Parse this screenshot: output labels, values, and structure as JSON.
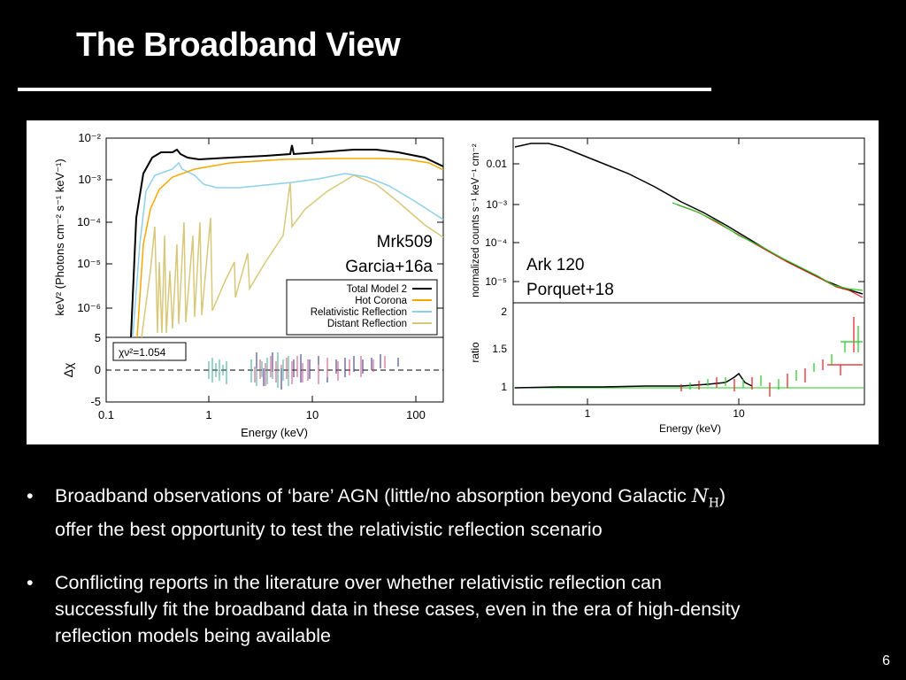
{
  "slide": {
    "title": "The Broadband View",
    "page_number": "6"
  },
  "figure_left": {
    "annotation_line1": "Mrk509",
    "annotation_line2": "Garcia+16a",
    "ylabel": "keV² (Photons cm⁻² s⁻¹ keV⁻¹)",
    "yticks": [
      "10⁻²",
      "10⁻³",
      "10⁻⁴",
      "10⁻⁵",
      "10⁻⁶"
    ],
    "resid_ylabel": "Δχ",
    "resid_yticks": [
      "5",
      "0",
      "-5"
    ],
    "xticks": [
      "0.1",
      "1",
      "10",
      "100"
    ],
    "xlabel": "Energy (keV)",
    "chisq": "χν²=1.054",
    "legend": [
      {
        "label": "Total Model 2",
        "color": "#000000"
      },
      {
        "label": "Hot Corona",
        "color": "#f5a800"
      },
      {
        "label": "Relativistic Reflection",
        "color": "#8ecfea"
      },
      {
        "label": "Distant Reflection",
        "color": "#d8c87a"
      }
    ]
  },
  "figure_right": {
    "annotation_line1": "Ark 120",
    "annotation_line2": "Porquet+18",
    "ylabel": "normalized counts s⁻¹ keV⁻¹ cm⁻²",
    "yticks": [
      "0.01",
      "10⁻³",
      "10⁻⁴",
      "10⁻⁵"
    ],
    "ratio_ylabel": "ratio",
    "ratio_yticks": [
      "2",
      "1.5",
      "1"
    ],
    "xticks": [
      "1",
      "10"
    ],
    "xlabel": "Energy (keV)"
  },
  "bullets": {
    "b1_line1_pre": "Broadband observations of ‘bare’ AGN (little/no absorption beyond Galactic ",
    "b1_nh_base": "N",
    "b1_nh_sub": "H",
    "b1_line1_post": ")",
    "b1_line2": "offer the best opportunity to test the relativistic reflection scenario",
    "b2_line1": "Conflicting reports in the literature over whether relativistic reflection can",
    "b2_line2": "successfully fit the broadband data in these cases, even in the era of high-density",
    "b2_line3": "reflection models being available",
    "bullet_char": "•"
  }
}
